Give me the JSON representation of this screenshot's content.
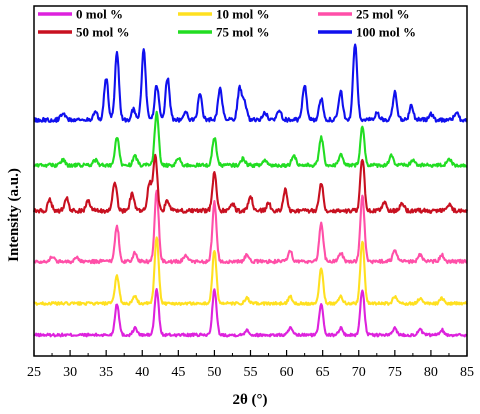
{
  "chart_data": {
    "type": "line",
    "title": "",
    "xlabel": "2θ (°)",
    "ylabel": "Intensity (a.u.)",
    "xlim": [
      25,
      85
    ],
    "x_ticks": [
      25,
      30,
      35,
      40,
      45,
      50,
      55,
      60,
      65,
      70,
      75,
      80,
      85
    ],
    "y_ticks_shown": false,
    "grid": false,
    "legend_position": "top",
    "series": [
      {
        "name": "0 mol %",
        "color": "#dd22dd",
        "baseline": 0.06,
        "noise": 0.004,
        "peaks": [
          [
            36.5,
            0.09
          ],
          [
            39.0,
            0.02
          ],
          [
            42.0,
            0.13
          ],
          [
            50.0,
            0.13
          ],
          [
            54.5,
            0.015
          ],
          [
            60.5,
            0.02
          ],
          [
            64.8,
            0.09
          ],
          [
            67.5,
            0.02
          ],
          [
            70.5,
            0.13
          ],
          [
            75.0,
            0.02
          ],
          [
            78.5,
            0.015
          ],
          [
            81.5,
            0.015
          ]
        ]
      },
      {
        "name": "10 mol %",
        "color": "#ffe020",
        "baseline": 0.15,
        "noise": 0.004,
        "peaks": [
          [
            36.5,
            0.08
          ],
          [
            39.0,
            0.02
          ],
          [
            42.0,
            0.19
          ],
          [
            50.0,
            0.15
          ],
          [
            54.5,
            0.015
          ],
          [
            60.5,
            0.02
          ],
          [
            64.8,
            0.1
          ],
          [
            67.5,
            0.02
          ],
          [
            70.5,
            0.18
          ],
          [
            75.0,
            0.02
          ],
          [
            78.5,
            0.015
          ],
          [
            81.5,
            0.015
          ]
        ]
      },
      {
        "name": "25 mol %",
        "color": "#ff4fa8",
        "baseline": 0.27,
        "noise": 0.005,
        "peaks": [
          [
            27.5,
            0.015
          ],
          [
            31.0,
            0.01
          ],
          [
            36.5,
            0.1
          ],
          [
            39.0,
            0.025
          ],
          [
            42.0,
            0.2
          ],
          [
            46.0,
            0.015
          ],
          [
            50.0,
            0.17
          ],
          [
            54.5,
            0.02
          ],
          [
            60.5,
            0.03
          ],
          [
            64.8,
            0.11
          ],
          [
            67.5,
            0.025
          ],
          [
            70.5,
            0.19
          ],
          [
            75.0,
            0.03
          ],
          [
            78.5,
            0.02
          ],
          [
            81.5,
            0.02
          ]
        ]
      },
      {
        "name": "50 mol %",
        "color": "#c81020",
        "baseline": 0.415,
        "noise": 0.006,
        "peaks": [
          [
            27.2,
            0.03
          ],
          [
            29.5,
            0.035
          ],
          [
            32.5,
            0.03
          ],
          [
            36.2,
            0.08
          ],
          [
            38.6,
            0.05
          ],
          [
            41.0,
            0.08
          ],
          [
            41.8,
            0.16
          ],
          [
            43.5,
            0.03
          ],
          [
            50.0,
            0.11
          ],
          [
            52.5,
            0.02
          ],
          [
            55.0,
            0.04
          ],
          [
            57.5,
            0.02
          ],
          [
            59.8,
            0.06
          ],
          [
            64.8,
            0.08
          ],
          [
            70.5,
            0.15
          ],
          [
            73.5,
            0.025
          ],
          [
            76.0,
            0.025
          ],
          [
            82.5,
            0.02
          ]
        ]
      },
      {
        "name": "75 mol %",
        "color": "#22dd22",
        "baseline": 0.545,
        "noise": 0.005,
        "peaks": [
          [
            29.0,
            0.015
          ],
          [
            33.5,
            0.015
          ],
          [
            36.5,
            0.08
          ],
          [
            39.0,
            0.025
          ],
          [
            42.0,
            0.15
          ],
          [
            45.0,
            0.02
          ],
          [
            50.0,
            0.08
          ],
          [
            54.0,
            0.02
          ],
          [
            57.0,
            0.015
          ],
          [
            61.0,
            0.03
          ],
          [
            64.8,
            0.08
          ],
          [
            67.5,
            0.03
          ],
          [
            70.5,
            0.11
          ],
          [
            74.5,
            0.03
          ],
          [
            77.5,
            0.015
          ],
          [
            82.5,
            0.02
          ]
        ]
      },
      {
        "name": "100 mol %",
        "color": "#1010ee",
        "baseline": 0.675,
        "noise": 0.006,
        "peaks": [
          [
            29.0,
            0.02
          ],
          [
            33.5,
            0.02
          ],
          [
            35.0,
            0.12
          ],
          [
            36.5,
            0.19
          ],
          [
            38.8,
            0.03
          ],
          [
            40.2,
            0.2
          ],
          [
            42.0,
            0.1
          ],
          [
            43.5,
            0.12
          ],
          [
            46.0,
            0.02
          ],
          [
            48.0,
            0.07
          ],
          [
            50.8,
            0.09
          ],
          [
            53.5,
            0.09
          ],
          [
            54.2,
            0.05
          ],
          [
            57.0,
            0.02
          ],
          [
            59.0,
            0.03
          ],
          [
            62.5,
            0.1
          ],
          [
            64.8,
            0.06
          ],
          [
            67.5,
            0.08
          ],
          [
            69.5,
            0.22
          ],
          [
            72.5,
            0.02
          ],
          [
            75.0,
            0.08
          ],
          [
            77.3,
            0.04
          ],
          [
            80.0,
            0.015
          ],
          [
            83.5,
            0.02
          ]
        ]
      }
    ]
  }
}
